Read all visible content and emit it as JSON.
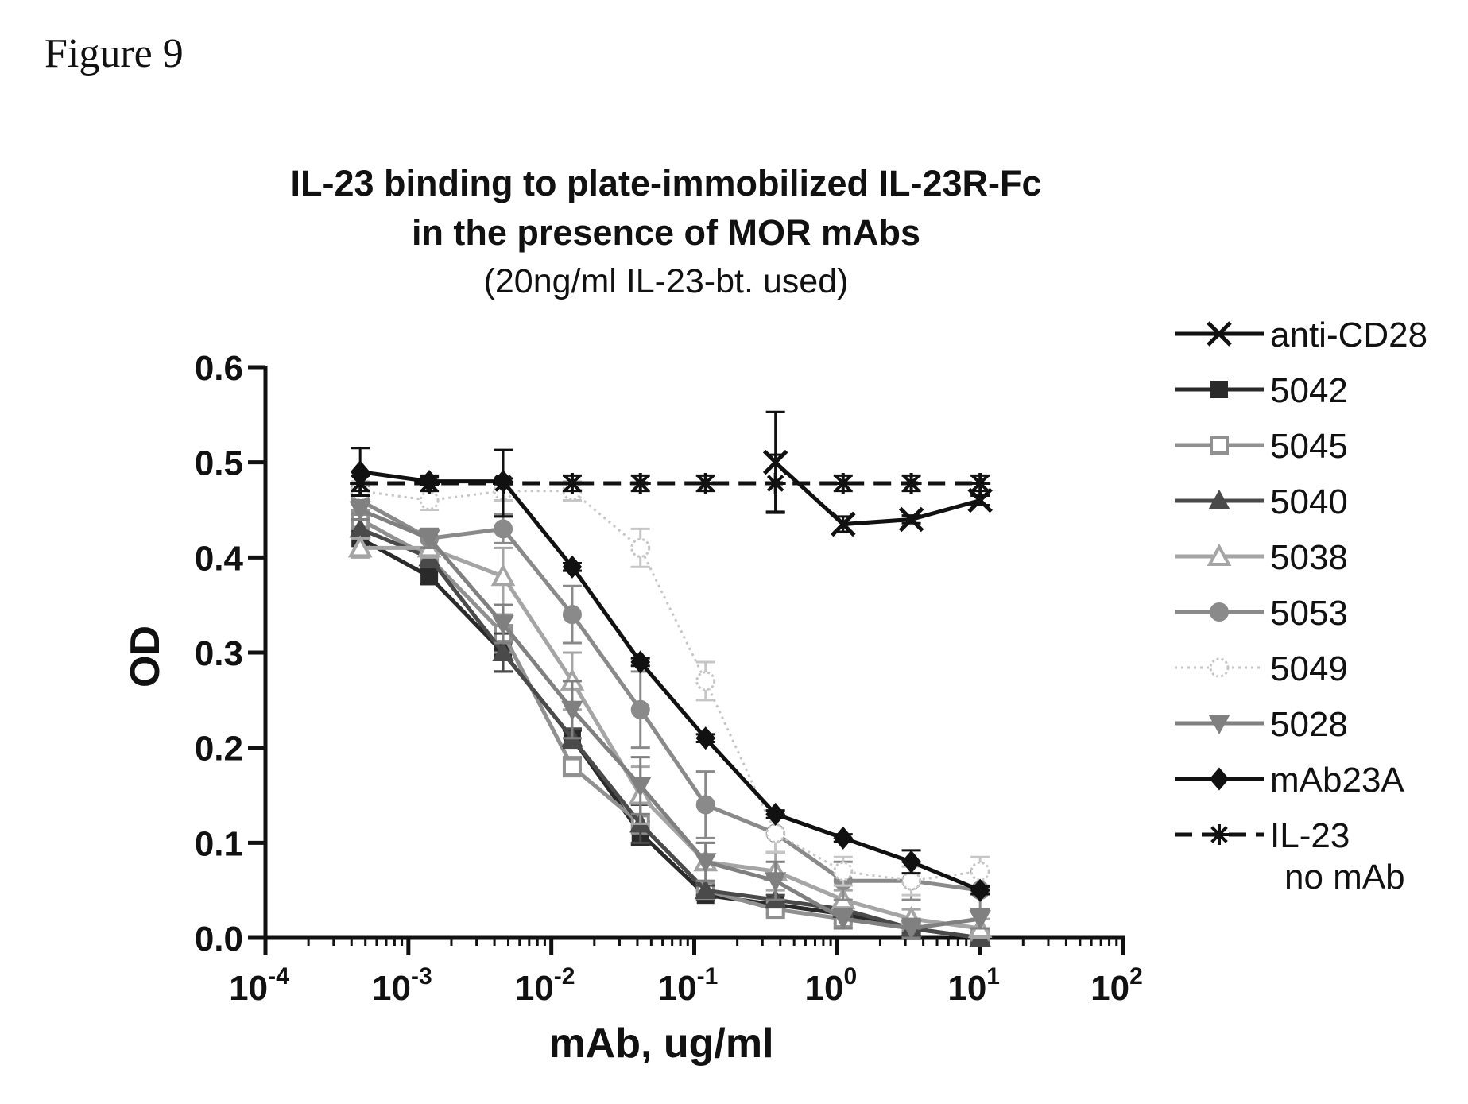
{
  "figure_label": "Figure 9",
  "chart_data": {
    "type": "line",
    "title": "IL-23 binding to plate-immobilized IL-23R-Fc",
    "title_line2": "in the presence of MOR mAbs",
    "subtitle": "(20ng/ml IL-23-bt. used)",
    "xlabel": "mAb, ug/ml",
    "ylabel": "OD",
    "x_scale": "log",
    "xlim": [
      0.0001,
      100
    ],
    "ylim": [
      0.0,
      0.6
    ],
    "x_ticks": [
      {
        "base": "10",
        "exp": "-4",
        "value": 0.0001
      },
      {
        "base": "10",
        "exp": "-3",
        "value": 0.001
      },
      {
        "base": "10",
        "exp": "-2",
        "value": 0.01
      },
      {
        "base": "10",
        "exp": "-1",
        "value": 0.1
      },
      {
        "base": "10",
        "exp": "0",
        "value": 1
      },
      {
        "base": "10",
        "exp": "1",
        "value": 10
      },
      {
        "base": "10",
        "exp": "2",
        "value": 100
      }
    ],
    "y_ticks": [
      "0.0",
      "0.1",
      "0.2",
      "0.3",
      "0.4",
      "0.5",
      "0.6"
    ],
    "grid": false,
    "legend_position": "right",
    "x": [
      0.00046,
      0.0014,
      0.0046,
      0.014,
      0.042,
      0.12,
      0.37,
      1.1,
      3.3,
      10
    ],
    "series": [
      {
        "name": "anti-CD28",
        "color": "#111111",
        "marker": "x",
        "dash": "solid",
        "x": [
          0.37,
          1.1,
          3.3,
          10
        ],
        "values": [
          0.5,
          0.435,
          0.44,
          0.46
        ],
        "errors": [
          0.053,
          0.008,
          0.004,
          0.005
        ]
      },
      {
        "name": "5042",
        "color": "#2a2a2a",
        "marker": "square",
        "dash": "solid",
        "values": [
          0.42,
          0.38,
          0.3,
          0.21,
          0.11,
          0.045,
          0.035,
          0.025,
          0.01,
          0.0
        ],
        "errors": [
          0.015,
          0.008,
          0.02,
          0.008,
          0.012,
          0.005,
          0.004,
          0.004,
          0.004,
          0.004
        ]
      },
      {
        "name": "5045",
        "color": "#909090",
        "marker": "square-open",
        "dash": "solid",
        "values": [
          0.44,
          0.4,
          0.32,
          0.18,
          0.12,
          0.05,
          0.03,
          0.02,
          0.01,
          0.0
        ],
        "errors": [
          0.01,
          0.01,
          0.02,
          0.01,
          0.01,
          0.005,
          0.005,
          0.005,
          0.005,
          0.005
        ]
      },
      {
        "name": "5040",
        "color": "#4a4a4a",
        "marker": "triangle",
        "dash": "solid",
        "values": [
          0.43,
          0.4,
          0.3,
          0.21,
          0.12,
          0.05,
          0.04,
          0.03,
          0.01,
          0.0
        ],
        "errors": [
          0.01,
          0.01,
          0.02,
          0.01,
          0.02,
          0.005,
          0.005,
          0.005,
          0.005,
          0.005
        ]
      },
      {
        "name": "5038",
        "color": "#a5a5a5",
        "marker": "triangle-open",
        "dash": "solid",
        "values": [
          0.41,
          0.41,
          0.38,
          0.27,
          0.15,
          0.08,
          0.07,
          0.04,
          0.02,
          0.01
        ],
        "errors": [
          0.01,
          0.01,
          0.03,
          0.03,
          0.03,
          0.02,
          0.02,
          0.01,
          0.01,
          0.01
        ]
      },
      {
        "name": "5053",
        "color": "#8a8a8a",
        "marker": "circle",
        "dash": "solid",
        "values": [
          0.46,
          0.42,
          0.43,
          0.34,
          0.24,
          0.14,
          0.11,
          0.06,
          0.06,
          0.05
        ],
        "errors": [
          0.015,
          0.01,
          0.015,
          0.03,
          0.04,
          0.035,
          0.02,
          0.02,
          0.02,
          0.02
        ]
      },
      {
        "name": "5049",
        "color": "#c6c6c6",
        "marker": "circle-open",
        "dash": "dotted",
        "values": [
          0.47,
          0.46,
          0.47,
          0.47,
          0.41,
          0.27,
          0.11,
          0.07,
          0.06,
          0.07
        ],
        "errors": [
          0.01,
          0.01,
          0.01,
          0.01,
          0.02,
          0.02,
          0.02,
          0.015,
          0.015,
          0.015
        ]
      },
      {
        "name": "5028",
        "color": "#808080",
        "marker": "triangle-down",
        "dash": "solid",
        "values": [
          0.45,
          0.42,
          0.33,
          0.24,
          0.16,
          0.08,
          0.06,
          0.02,
          0.01,
          0.02
        ],
        "errors": [
          0.01,
          0.01,
          0.02,
          0.03,
          0.03,
          0.02,
          0.02,
          0.01,
          0.01,
          0.01
        ]
      },
      {
        "name": "mAb23A",
        "color": "#111111",
        "marker": "diamond",
        "dash": "solid",
        "values": [
          0.49,
          0.48,
          0.48,
          0.39,
          0.29,
          0.21,
          0.13,
          0.105,
          0.08,
          0.05
        ],
        "errors": [
          0.025,
          0.004,
          0.003,
          0.004,
          0.004,
          0.004,
          0.004,
          0.004,
          0.012,
          0.004
        ]
      },
      {
        "name": "IL-23 no mAb",
        "legend_lines": [
          "IL-23",
          "no mAb"
        ],
        "color": "#111111",
        "marker": "asterisk",
        "dash": "dashed",
        "values": [
          0.478,
          0.478,
          0.478,
          0.478,
          0.478,
          0.478,
          0.478,
          0.478,
          0.478,
          0.478
        ],
        "errors": [
          0.008,
          0.008,
          0.035,
          0.008,
          0.008,
          0.008,
          0.03,
          0.008,
          0.008,
          0.008
        ]
      }
    ]
  }
}
